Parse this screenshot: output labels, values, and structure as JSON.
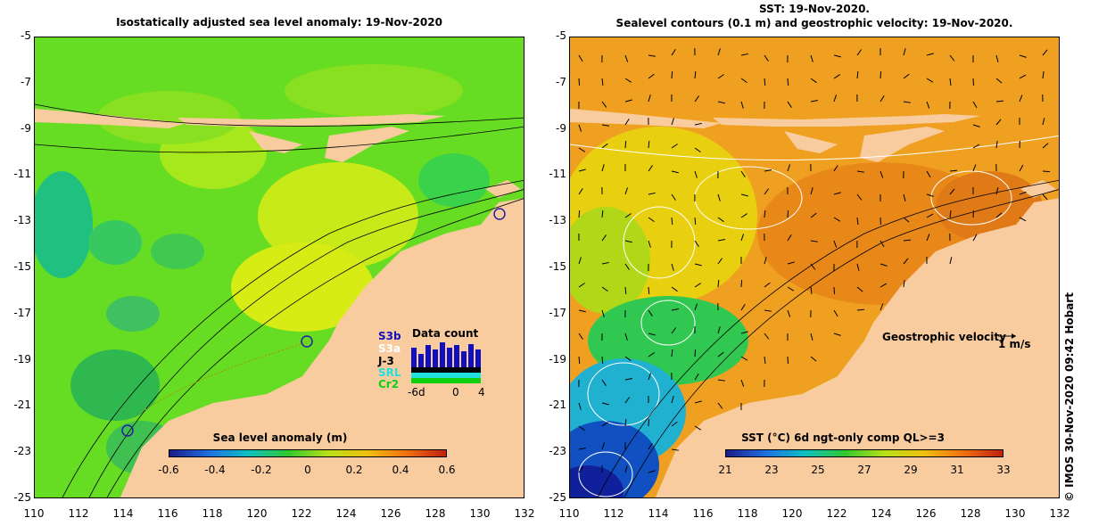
{
  "left_panel": {
    "title": "Isostatically adjusted sea level anomaly: 19-Nov-2020",
    "colorbar_title": "Sea level anomaly (m)",
    "colorbar_ticks": [
      "-0.6",
      "-0.4",
      "-0.2",
      "0",
      "0.2",
      "0.4",
      "0.6"
    ],
    "data_count": {
      "title": "Data count",
      "satellites": [
        {
          "name": "S3b",
          "color": "#1010c0"
        },
        {
          "name": "S3a",
          "color": "#ffffff"
        },
        {
          "name": "J-3",
          "color": "#000000"
        },
        {
          "name": "SRL",
          "color": "#20e0e0"
        },
        {
          "name": "Cr2",
          "color": "#10d010"
        }
      ],
      "axis_ticks": [
        "-6d",
        "0",
        "4"
      ]
    }
  },
  "right_panel": {
    "title_line1": "SST: 19-Nov-2020.",
    "title_line2": "Sealevel contours (0.1 m) and geostrophic velocity: 19-Nov-2020.",
    "colorbar_title": "SST (°C) 6d ngt-only comp QL>=3",
    "colorbar_ticks": [
      "21",
      "23",
      "25",
      "27",
      "29",
      "31",
      "33"
    ],
    "velocity_label": "Geostrophic velocity",
    "velocity_scale": "1 m/s"
  },
  "axes": {
    "y_ticks": [
      "-5",
      "-7",
      "-9",
      "-11",
      "-13",
      "-15",
      "-17",
      "-19",
      "-21",
      "-23",
      "-25"
    ],
    "x_ticks": [
      "110",
      "112",
      "114",
      "116",
      "118",
      "120",
      "122",
      "124",
      "126",
      "128",
      "130",
      "132"
    ]
  },
  "credit": "© IMOS 30-Nov-2020 09:42 Hobart",
  "colors": {
    "land": "#f9cca0",
    "ssa_bg": "#66dd22",
    "sst_bg": "#f0a020"
  }
}
